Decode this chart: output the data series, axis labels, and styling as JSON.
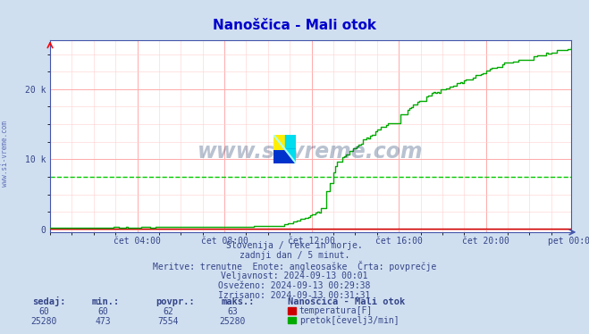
{
  "title": "Nanoščica - Mali otok",
  "title_color": "#0000cc",
  "bg_color": "#d0dff0",
  "plot_bg_color": "#ffffff",
  "grid_color_major": "#ffaaaa",
  "grid_color_minor": "#ffd0d0",
  "x_tick_labels": [
    "čet 04:00",
    "čet 08:00",
    "čet 12:00",
    "čet 16:00",
    "čet 20:00",
    "pet 00:00"
  ],
  "y_max": 27000,
  "y_min": -400,
  "avg_line_value": 7554,
  "avg_line_color": "#00cc00",
  "temp_color": "#cc0000",
  "flow_color": "#00aa00",
  "temp_sedaj": 60,
  "temp_min": 60,
  "temp_povpr": 62,
  "temp_maks": 63,
  "flow_sedaj": 25280,
  "flow_min": 473,
  "flow_povpr": 7554,
  "flow_maks": 25280,
  "info_line1": "Slovenija / reke in morje.",
  "info_line2": "zadnji dan / 5 minut.",
  "info_line3": "Meritve: trenutne  Enote: angleosaške  Črta: povprečje",
  "info_line4": "Veljavnost: 2024-09-13 00:01",
  "info_line5": "Osveženo: 2024-09-13 00:29:38",
  "info_line6": "Izrisano: 2024-09-13 00:31:31",
  "watermark": "www.si-vreme.com",
  "watermark_color": "#1a3566",
  "left_label": "www.si-vreme.com"
}
